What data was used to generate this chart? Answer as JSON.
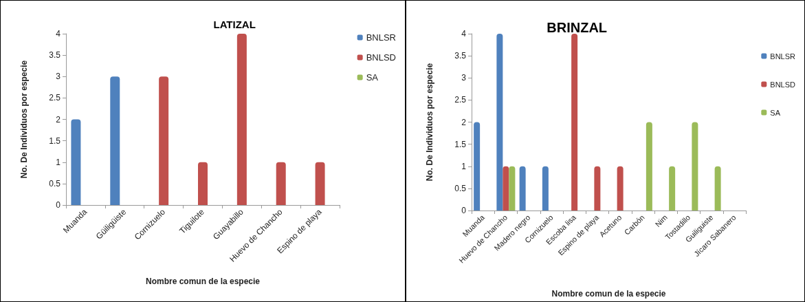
{
  "chart_data": [
    {
      "type": "bar",
      "title": "LATIZAL",
      "xlabel": "Nombre comun de la especie",
      "ylabel": "No. De Individuos por especie",
      "categories": [
        "Muanda",
        "Güiligüiste",
        "Cornizuelo",
        "Tiguilote",
        "Guayabillo",
        "Huevo de Chancho",
        "Espino de playa"
      ],
      "series": [
        {
          "name": "BNLSR",
          "color": "#4f81bd",
          "values": [
            2,
            3,
            null,
            null,
            null,
            null,
            null
          ]
        },
        {
          "name": "BNLSD",
          "color": "#c0504d",
          "values": [
            null,
            null,
            3,
            1,
            4,
            1,
            1
          ]
        },
        {
          "name": "SA",
          "color": "#9bbb59",
          "values": [
            0,
            0,
            0,
            0,
            0,
            0,
            0
          ]
        }
      ],
      "ylim": [
        0,
        4
      ],
      "yticks": [
        0,
        0.5,
        1,
        1.5,
        2,
        2.5,
        3,
        3.5,
        4
      ],
      "grid": false,
      "legend": "top right"
    },
    {
      "type": "bar",
      "title": "BRINZAL",
      "xlabel": "Nombre comun de la especie",
      "ylabel": "No. De Individuos por especie",
      "categories": [
        "Muanda",
        "Huevo de Chancho",
        "Madero negro",
        "Cornizuelo",
        "Escoba lisa",
        "Espino de playa",
        "Acetuno",
        "Carbón",
        "Nim",
        "Tostadillo",
        "Guiliguiste",
        "Jícaro Sabanero"
      ],
      "series": [
        {
          "name": "BNLSR",
          "color": "#4f81bd",
          "values": [
            2,
            4,
            1,
            1,
            null,
            null,
            null,
            null,
            null,
            null,
            null,
            null
          ]
        },
        {
          "name": "BNLSD",
          "color": "#c0504d",
          "values": [
            null,
            1,
            null,
            null,
            4,
            1,
            1,
            null,
            null,
            null,
            null,
            null
          ]
        },
        {
          "name": "SA",
          "color": "#9bbb59",
          "values": [
            null,
            1,
            null,
            null,
            null,
            null,
            null,
            2,
            1,
            2,
            1,
            null
          ]
        }
      ],
      "ylim": [
        0,
        4
      ],
      "yticks": [
        0,
        0.5,
        1,
        1.5,
        2,
        2.5,
        3,
        3.5,
        4
      ],
      "grid": false,
      "legend": "top right"
    }
  ]
}
